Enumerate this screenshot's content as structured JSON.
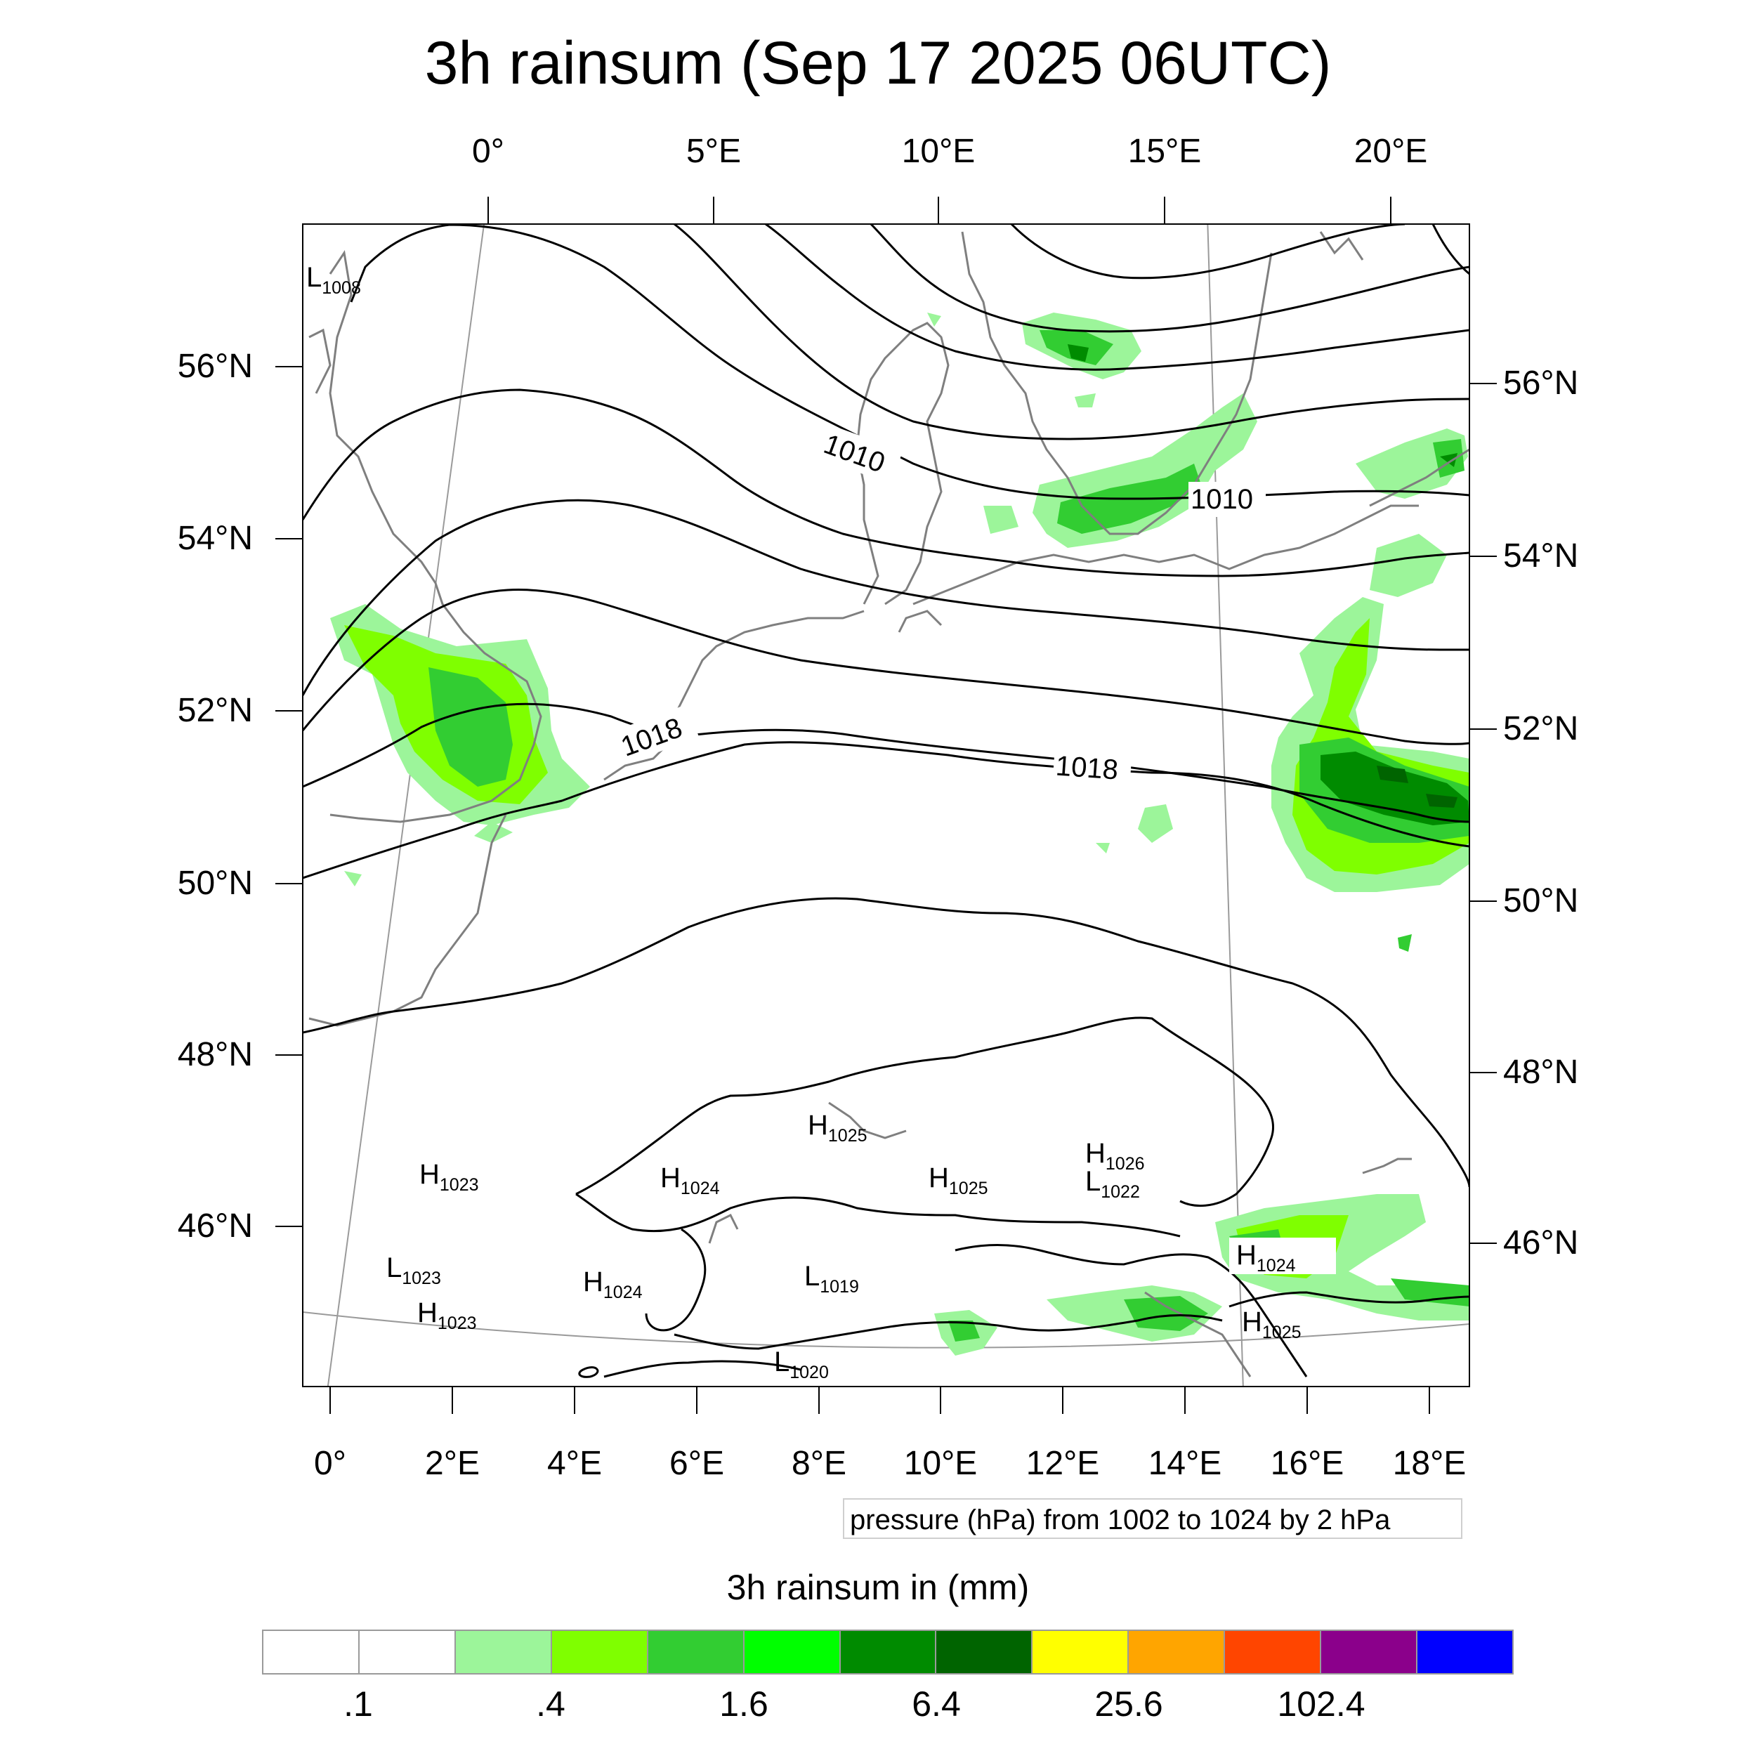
{
  "title": "3h rainsum (Sep 17 2025 06UTC)",
  "top_lon_labels": [
    "0°",
    "5°E",
    "10°E",
    "15°E",
    "20°E"
  ],
  "bottom_lon_labels": [
    "0°",
    "2°E",
    "4°E",
    "6°E",
    "8°E",
    "10°E",
    "12°E",
    "14°E",
    "16°E",
    "18°E"
  ],
  "left_lat_labels": [
    "56°N",
    "54°N",
    "52°N",
    "50°N",
    "48°N",
    "46°N"
  ],
  "right_lat_labels": [
    "56°N",
    "54°N",
    "52°N",
    "50°N",
    "48°N",
    "46°N"
  ],
  "contour_labels": [
    "1010",
    "1010",
    "1018",
    "1018"
  ],
  "pressure_centers": [
    {
      "type": "L",
      "value": "1008"
    },
    {
      "type": "H",
      "value": "1025"
    },
    {
      "type": "H",
      "value": "1026"
    },
    {
      "type": "L",
      "value": "1022"
    },
    {
      "type": "H",
      "value": "1023"
    },
    {
      "type": "H",
      "value": "1024"
    },
    {
      "type": "H",
      "value": "1025"
    },
    {
      "type": "L",
      "value": "1023"
    },
    {
      "type": "H",
      "value": "1024"
    },
    {
      "type": "L",
      "value": "1019"
    },
    {
      "type": "H",
      "value": "1024"
    },
    {
      "type": "H",
      "value": "1023"
    },
    {
      "type": "H",
      "value": "1025"
    },
    {
      "type": "L",
      "value": "1020"
    }
  ],
  "note": "pressure (hPa) from 1002 to 1024 by 2 hPa",
  "colorbar": {
    "title": "3h rainsum in (mm)",
    "labels": [
      ".1",
      ".4",
      "1.6",
      "6.4",
      "25.6",
      "102.4"
    ],
    "colors": [
      "#ffffff",
      "#ffffff",
      "#9cf59a",
      "#7fff00",
      "#32cd32",
      "#00ff00",
      "#008b00",
      "#006400",
      "#ffff00",
      "#ffa500",
      "#ff4500",
      "#8b008b",
      "#0000ff"
    ]
  },
  "rain_colors": {
    "light": "#9cf59a",
    "lime": "#7fff00",
    "medium": "#32cd32",
    "bright": "#00ff00",
    "dark": "#008b00",
    "darkest": "#006400"
  }
}
